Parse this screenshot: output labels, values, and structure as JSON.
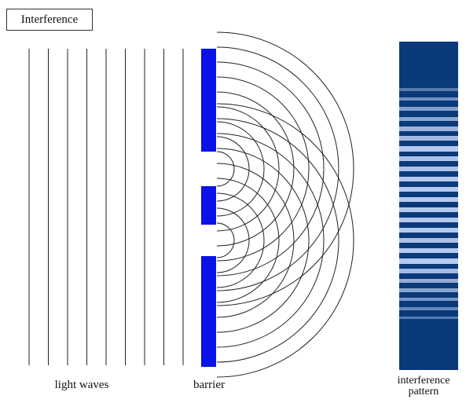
{
  "title": "Interference",
  "labels": {
    "light_waves": "light waves",
    "barrier": "barrier",
    "pattern_line1": "interference",
    "pattern_line2": "pattern"
  },
  "colors": {
    "barrier": "#0a12e6",
    "pattern_dark": "#0b3a7a",
    "pattern_light": "#b6c9ee",
    "wave_lines": "#222222"
  },
  "incoming_wavefronts": 9,
  "slits": 2,
  "arc_count_per_slit": 9
}
